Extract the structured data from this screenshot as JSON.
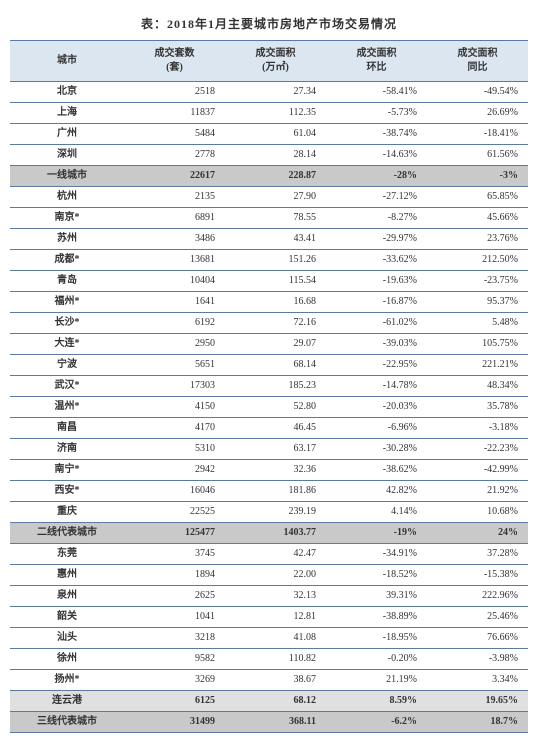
{
  "title": "表：2018年1月主要城市房地产市场交易情况",
  "columns": [
    "城市",
    "成交套数\n(套)",
    "成交面积\n(万㎡)",
    "成交面积\n环比",
    "成交面积\n同比"
  ],
  "rows": [
    {
      "city": "北京",
      "v": [
        "2518",
        "27.34",
        "-58.41%",
        "-49.54%"
      ]
    },
    {
      "city": "上海",
      "v": [
        "11837",
        "112.35",
        "-5.73%",
        "26.69%"
      ]
    },
    {
      "city": "广州",
      "v": [
        "5484",
        "61.04",
        "-38.74%",
        "-18.41%"
      ]
    },
    {
      "city": "深圳",
      "v": [
        "2778",
        "28.14",
        "-14.63%",
        "61.56%"
      ]
    },
    {
      "city": "一线城市",
      "v": [
        "22617",
        "228.87",
        "-28%",
        "-3%"
      ],
      "subtotal": true
    },
    {
      "city": "杭州",
      "v": [
        "2135",
        "27.90",
        "-27.12%",
        "65.85%"
      ]
    },
    {
      "city": "南京*",
      "v": [
        "6891",
        "78.55",
        "-8.27%",
        "45.66%"
      ]
    },
    {
      "city": "苏州",
      "v": [
        "3486",
        "43.41",
        "-29.97%",
        "23.76%"
      ]
    },
    {
      "city": "成都*",
      "v": [
        "13681",
        "151.26",
        "-33.62%",
        "212.50%"
      ]
    },
    {
      "city": "青岛",
      "v": [
        "10404",
        "115.54",
        "-19.63%",
        "-23.75%"
      ]
    },
    {
      "city": "福州*",
      "v": [
        "1641",
        "16.68",
        "-16.87%",
        "95.37%"
      ]
    },
    {
      "city": "长沙*",
      "v": [
        "6192",
        "72.16",
        "-61.02%",
        "5.48%"
      ]
    },
    {
      "city": "大连*",
      "v": [
        "2950",
        "29.07",
        "-39.03%",
        "105.75%"
      ]
    },
    {
      "city": "宁波",
      "v": [
        "5651",
        "68.14",
        "-22.95%",
        "221.21%"
      ]
    },
    {
      "city": "武汉*",
      "v": [
        "17303",
        "185.23",
        "-14.78%",
        "48.34%"
      ]
    },
    {
      "city": "温州*",
      "v": [
        "4150",
        "52.80",
        "-20.03%",
        "35.78%"
      ]
    },
    {
      "city": "南昌",
      "v": [
        "4170",
        "46.45",
        "-6.96%",
        "-3.18%"
      ]
    },
    {
      "city": "济南",
      "v": [
        "5310",
        "63.17",
        "-30.28%",
        "-22.23%"
      ]
    },
    {
      "city": "南宁*",
      "v": [
        "2942",
        "32.36",
        "-38.62%",
        "-42.99%"
      ]
    },
    {
      "city": "西安*",
      "v": [
        "16046",
        "181.86",
        "42.82%",
        "21.92%"
      ]
    },
    {
      "city": "重庆",
      "v": [
        "22525",
        "239.19",
        "4.14%",
        "10.68%"
      ]
    },
    {
      "city": "二线代表城市",
      "v": [
        "125477",
        "1403.77",
        "-19%",
        "24%"
      ],
      "subtotal": true
    },
    {
      "city": "东莞",
      "v": [
        "3745",
        "42.47",
        "-34.91%",
        "37.28%"
      ]
    },
    {
      "city": "惠州",
      "v": [
        "1894",
        "22.00",
        "-18.52%",
        "-15.38%"
      ]
    },
    {
      "city": "泉州",
      "v": [
        "2625",
        "32.13",
        "39.31%",
        "222.96%"
      ]
    },
    {
      "city": "韶关",
      "v": [
        "1041",
        "12.81",
        "-38.89%",
        "25.46%"
      ]
    },
    {
      "city": "汕头",
      "v": [
        "3218",
        "41.08",
        "-18.95%",
        "76.66%"
      ]
    },
    {
      "city": "徐州",
      "v": [
        "9582",
        "110.82",
        "-0.20%",
        "-3.98%"
      ]
    },
    {
      "city": "扬州*",
      "v": [
        "3269",
        "38.67",
        "21.19%",
        "3.34%"
      ]
    },
    {
      "city": "连云港",
      "v": [
        "6125",
        "68.12",
        "8.59%",
        "19.65%"
      ],
      "subtotal_light": true
    },
    {
      "city": "三线代表城市",
      "v": [
        "31499",
        "368.11",
        "-6.2%",
        "18.7%"
      ],
      "subtotal": true
    }
  ],
  "style": {
    "header_bg": "#dce6f0",
    "subtotal_bg": "#c9c9c9",
    "subtotal_light_bg": "#e0e0e0",
    "border_color": "#5a7aa0",
    "font_size_body": 10,
    "font_size_title": 12
  }
}
